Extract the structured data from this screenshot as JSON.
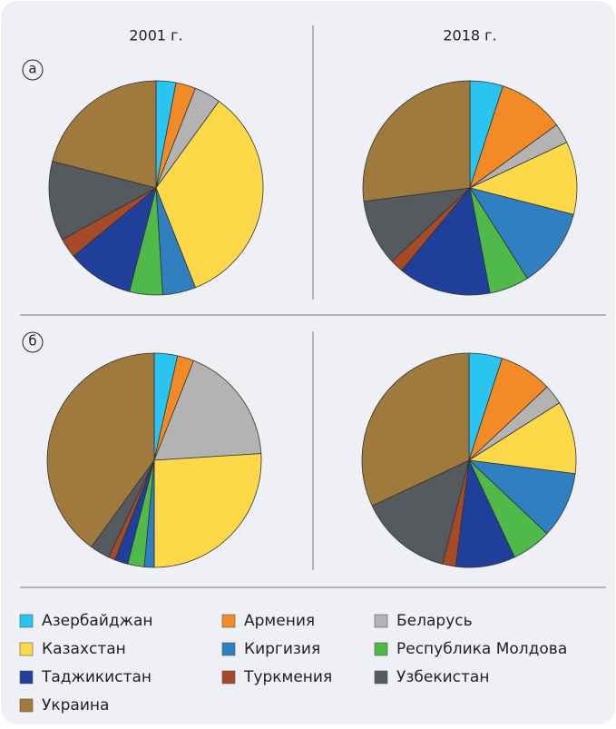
{
  "headers": [
    "2001 г.",
    "2018 г."
  ],
  "panels": [
    "а",
    "б"
  ],
  "legend": {
    "categories": [
      "Азербайджан",
      "Армения",
      "Беларусь",
      "Казахстан",
      "Киргизия",
      "Республика Молдова",
      "Таджикистан",
      "Туркмения",
      "Узбекистан",
      "Украина"
    ],
    "colors": [
      "#29c4ef",
      "#f28a26",
      "#b3b3b3",
      "#fdd94a",
      "#2f7fc1",
      "#4fba4a",
      "#1f3f9a",
      "#a64b28",
      "#555a5f",
      "#a07a3c"
    ]
  },
  "chart_data": [
    {
      "type": "pie",
      "values": [
        3,
        3,
        4,
        34,
        5,
        5,
        10,
        3,
        12,
        21
      ]
    },
    {
      "type": "pie",
      "values": [
        5,
        10,
        3,
        11,
        12,
        6,
        14,
        2,
        10,
        27
      ]
    },
    {
      "type": "pie",
      "values": [
        3.5,
        2.5,
        18,
        26,
        1.5,
        2.5,
        2,
        1,
        3,
        40
      ]
    },
    {
      "type": "pie",
      "values": [
        5,
        8,
        3,
        11,
        10,
        6,
        9,
        2,
        14,
        32
      ]
    }
  ]
}
